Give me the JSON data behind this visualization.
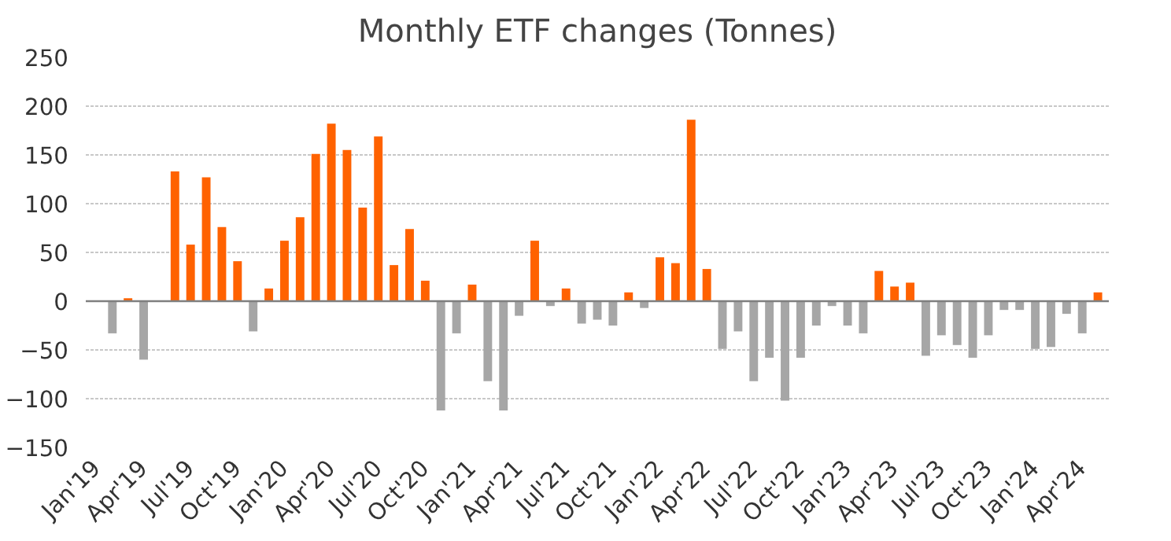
{
  "chart_data": {
    "type": "bar",
    "title": "Monthly ETF changes (Tonnes)",
    "categories": [
      "Jan'19",
      null,
      null,
      "Apr'19",
      null,
      null,
      "Jul'19",
      null,
      null,
      "Oct'19",
      null,
      null,
      "Jan'20",
      null,
      null,
      "Apr'20",
      null,
      null,
      "Jul'20",
      null,
      null,
      "Oct'20",
      null,
      null,
      "Jan'21",
      null,
      null,
      "Apr'21",
      null,
      null,
      "Jul'21",
      null,
      null,
      "Oct'21",
      null,
      null,
      "Jan'22",
      null,
      null,
      "Apr'22",
      null,
      null,
      "Jul'22",
      null,
      null,
      "Oct'22",
      null,
      null,
      "Jan'23",
      null,
      null,
      "Apr'23",
      null,
      null,
      "Jul'23",
      null,
      null,
      "Oct'23",
      null,
      null,
      "Jan'24",
      null,
      null,
      "Apr'24",
      null
    ],
    "values": [
      0,
      -33,
      3,
      -60,
      0,
      133,
      58,
      127,
      76,
      41,
      -31,
      13,
      62,
      86,
      151,
      182,
      155,
      96,
      169,
      37,
      74,
      21,
      -112,
      -33,
      17,
      -82,
      -112,
      -15,
      62,
      -5,
      13,
      -23,
      -19,
      -25,
      9,
      -7,
      45,
      39,
      186,
      33,
      -49,
      -31,
      -82,
      -58,
      -102,
      -58,
      -25,
      -5,
      -25,
      -33,
      31,
      15,
      19,
      -56,
      -35,
      -45,
      -58,
      -35,
      -9,
      -9,
      -49,
      -47,
      -13,
      -33,
      9
    ],
    "colors": [
      "#a6a6a6",
      "#a6a6a6",
      "#ff6200",
      "#a6a6a6",
      "#a6a6a6",
      "#ff6200",
      "#ff6200",
      "#ff6200",
      "#ff6200",
      "#ff6200",
      "#a6a6a6",
      "#ff6200",
      "#ff6200",
      "#ff6200",
      "#ff6200",
      "#ff6200",
      "#ff6200",
      "#ff6200",
      "#ff6200",
      "#ff6200",
      "#ff6200",
      "#ff6200",
      "#a6a6a6",
      "#a6a6a6",
      "#ff6200",
      "#a6a6a6",
      "#a6a6a6",
      "#a6a6a6",
      "#ff6200",
      "#a6a6a6",
      "#ff6200",
      "#a6a6a6",
      "#a6a6a6",
      "#a6a6a6",
      "#ff6200",
      "#a6a6a6",
      "#ff6200",
      "#ff6200",
      "#ff6200",
      "#ff6200",
      "#a6a6a6",
      "#a6a6a6",
      "#a6a6a6",
      "#a6a6a6",
      "#a6a6a6",
      "#a6a6a6",
      "#a6a6a6",
      "#a6a6a6",
      "#a6a6a6",
      "#a6a6a6",
      "#ff6200",
      "#ff6200",
      "#ff6200",
      "#a6a6a6",
      "#a6a6a6",
      "#a6a6a6",
      "#a6a6a6",
      "#a6a6a6",
      "#a6a6a6",
      "#a6a6a6",
      "#a6a6a6",
      "#a6a6a6",
      "#a6a6a6",
      "#a6a6a6",
      "#ff6200"
    ],
    "ylim": [
      -150,
      250
    ],
    "yticks": [
      -150,
      -100,
      -50,
      0,
      50,
      100,
      150,
      200,
      250
    ],
    "grid": "y"
  }
}
